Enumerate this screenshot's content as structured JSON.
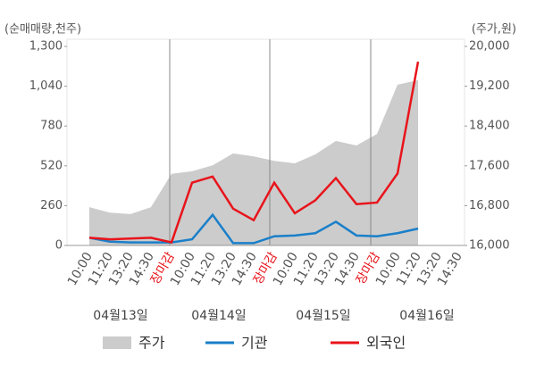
{
  "chart_data": {
    "type": "combo",
    "y_axis_label": "(순매매량,천주)",
    "y2_axis_label": "(주가,원)",
    "categories": [
      "10:00",
      "11:20",
      "13:20",
      "14:30",
      "장마감",
      "10:00",
      "11:20",
      "13:20",
      "14:30",
      "장마감",
      "10:00",
      "11:20",
      "13:20",
      "14:30",
      "장마감",
      "10:00",
      "11:20",
      "13:20",
      "14:30"
    ],
    "closing_label_color": "#e8141b",
    "dates": [
      "04월13일",
      "04월14일",
      "04월15일",
      "04월16일"
    ],
    "ylim": [
      0,
      1300
    ],
    "yticks": [
      0,
      260,
      520,
      780,
      {
        "value": 1040,
        "label": "1,040"
      },
      {
        "value": 1300,
        "label": "1,300"
      }
    ],
    "y2lim": [
      16000,
      20000
    ],
    "y2ticks": [
      {
        "value": 16000,
        "label": "16,000"
      },
      {
        "value": 16800,
        "label": "16,800"
      },
      {
        "value": 17600,
        "label": "17,600"
      },
      {
        "value": 18400,
        "label": "18,400"
      },
      {
        "value": 19200,
        "label": "19,200"
      },
      {
        "value": 20000,
        "label": "20,000"
      }
    ],
    "series": [
      {
        "name": "주가",
        "type": "area",
        "axis": "y2",
        "color": "#cccccc",
        "values": [
          16770,
          16660,
          16630,
          16770,
          17440,
          17490,
          17610,
          17850,
          17790,
          17700,
          17650,
          17830,
          18100,
          18010,
          18240,
          19230,
          19320,
          null,
          null
        ]
      },
      {
        "name": "기관",
        "type": "line",
        "color": "#1a7fc9",
        "values": [
          50,
          25,
          20,
          20,
          20,
          40,
          200,
          15,
          15,
          60,
          65,
          80,
          155,
          65,
          60,
          80,
          110,
          null,
          null
        ]
      },
      {
        "name": "외국인",
        "type": "line",
        "color": "#e8141b",
        "values": [
          50,
          40,
          45,
          50,
          20,
          410,
          450,
          240,
          165,
          410,
          210,
          295,
          440,
          270,
          280,
          470,
          1200,
          null,
          null
        ]
      }
    ]
  }
}
